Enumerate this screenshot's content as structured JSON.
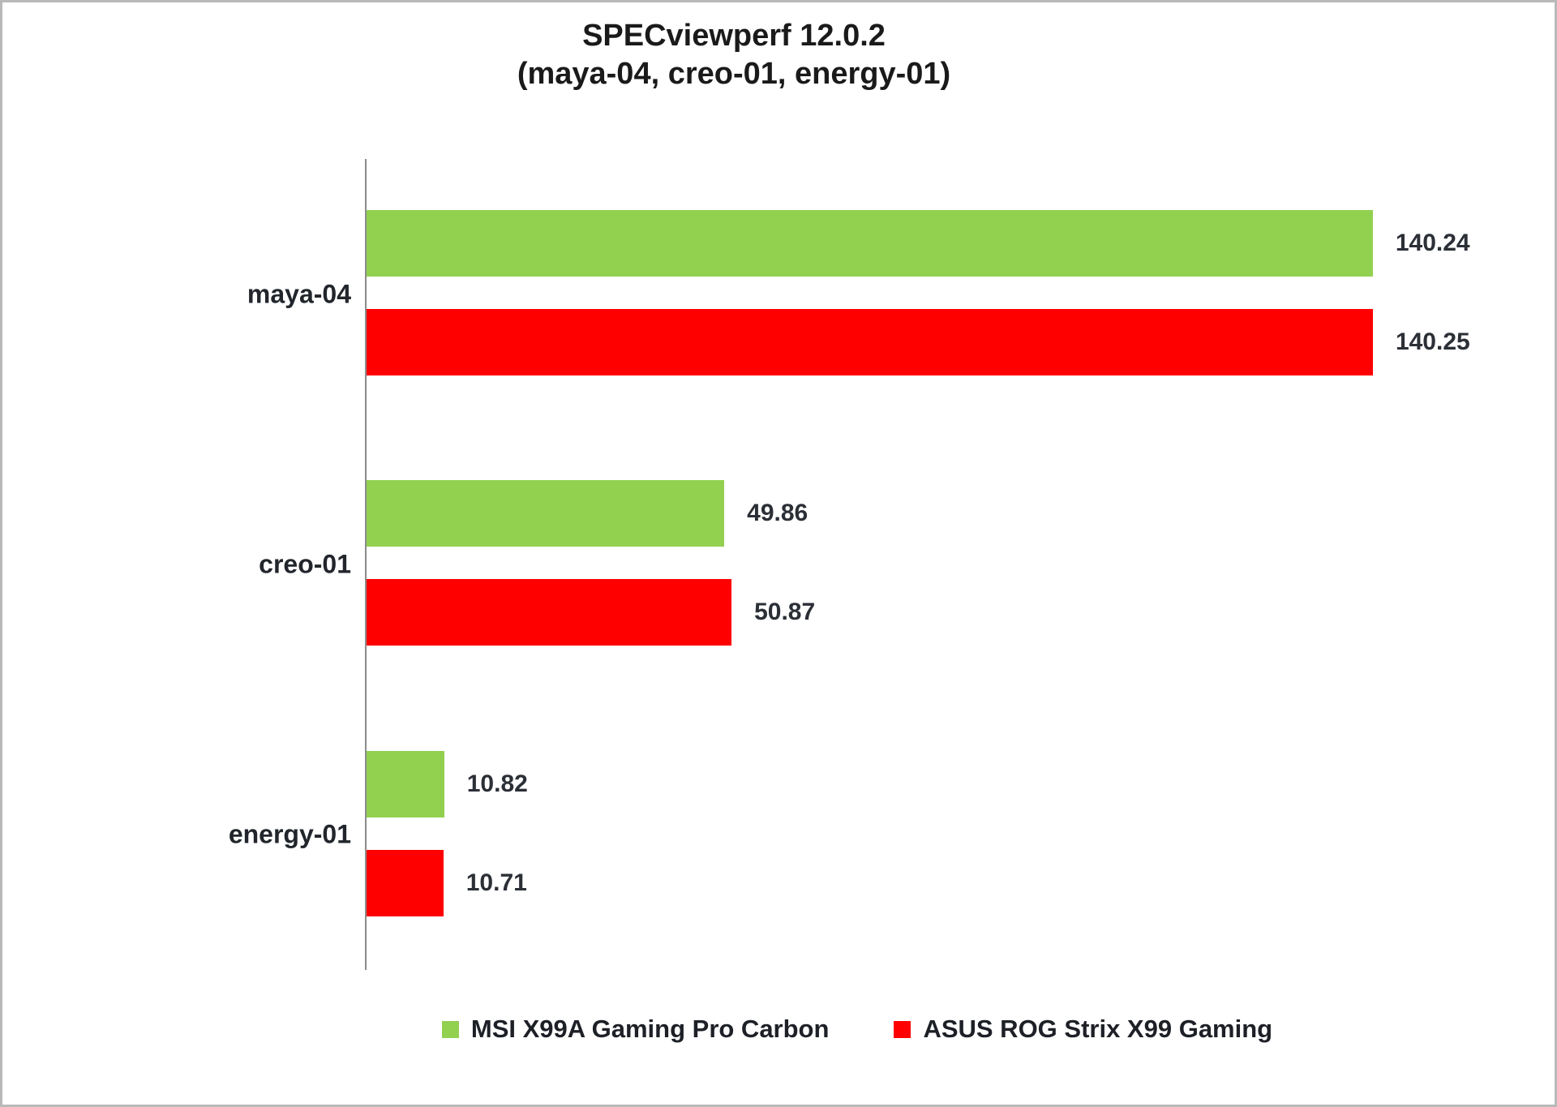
{
  "title": {
    "line1": "SPECviewperf 12.0.2",
    "line2": "(maya-04, creo-01, energy-01)"
  },
  "chart_data": {
    "type": "bar",
    "orientation": "horizontal",
    "title": "SPECviewperf 12.0.2",
    "subtitle": "(maya-04, creo-01, energy-01)",
    "categories": [
      "maya-04",
      "creo-01",
      "energy-01"
    ],
    "series": [
      {
        "id": "msi",
        "name": "MSI X99A Gaming Pro Carbon",
        "color": "#92D050",
        "values": [
          140.24,
          49.86,
          10.82
        ]
      },
      {
        "id": "asus",
        "name": "ASUS ROG Strix X99 Gaming",
        "color": "#FF0000",
        "values": [
          140.25,
          50.87,
          10.71
        ]
      }
    ],
    "value_label_format": "0.00",
    "axis_max": 158,
    "grid": false,
    "axis_line_color": "#8c8c8c",
    "legend_position": "bottom"
  }
}
